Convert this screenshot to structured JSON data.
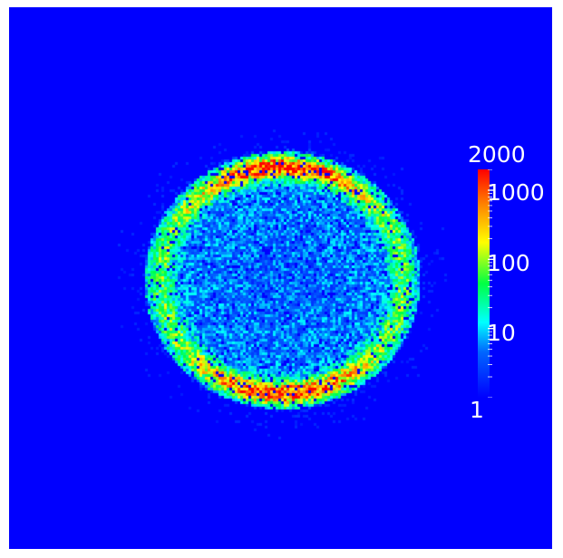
{
  "colors": {
    "background": "#0000ff",
    "frame": "#ffffff",
    "label_text": "#ffffff"
  },
  "colorbar": {
    "scale": "log",
    "colormap": "rainbow (blue-cyan-green-yellow-red)",
    "range": [
      1,
      2000
    ],
    "max_label": "2000",
    "min_label": "1",
    "tick_labels": [
      "1000",
      "100",
      "10"
    ],
    "tick_values": [
      1000,
      100,
      10
    ]
  },
  "heatmap": {
    "type": "2D counts histogram",
    "shape": "ring",
    "bright_arcs": [
      "top",
      "bottom"
    ]
  }
}
